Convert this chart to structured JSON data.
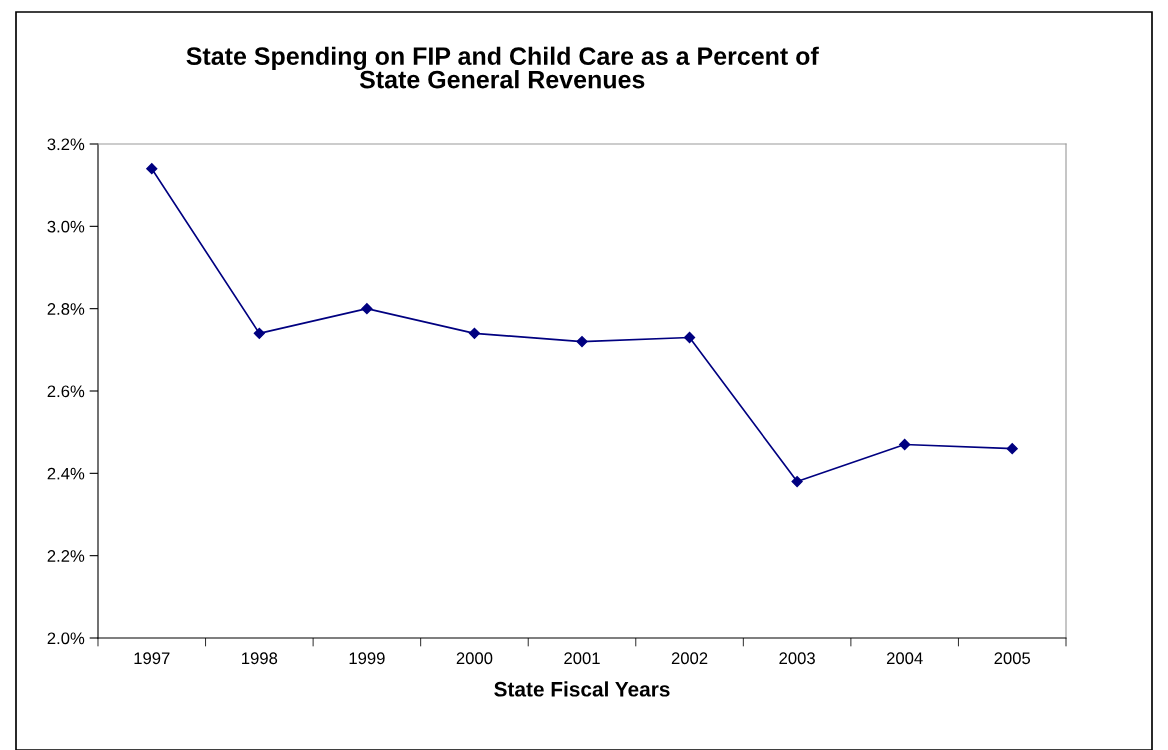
{
  "chart_data": {
    "type": "line",
    "title": "State Spending on FIP and Child Care as a Percent of\nState General Revenues",
    "xlabel": "State Fiscal Years",
    "categories": [
      "1997",
      "1998",
      "1999",
      "2000",
      "2001",
      "2002",
      "2003",
      "2004",
      "2005"
    ],
    "series": [
      {
        "color": "#000080",
        "values": [
          3.14,
          2.74,
          2.8,
          2.74,
          2.72,
          2.73,
          2.38,
          2.47,
          2.46
        ]
      }
    ],
    "ylim": [
      2.0,
      3.2
    ],
    "yticks": [
      {
        "value": 2.0,
        "label": "2.0%"
      },
      {
        "value": 2.2,
        "label": "2.2%"
      },
      {
        "value": 2.4,
        "label": "2.4%"
      },
      {
        "value": 2.6,
        "label": "2.6%"
      },
      {
        "value": 2.8,
        "label": "2.8%"
      },
      {
        "value": 3.0,
        "label": "3.0%"
      },
      {
        "value": 3.2,
        "label": "3.2%"
      }
    ],
    "grid": false,
    "legend": false,
    "marker": "diamond",
    "line_style": "solid"
  }
}
